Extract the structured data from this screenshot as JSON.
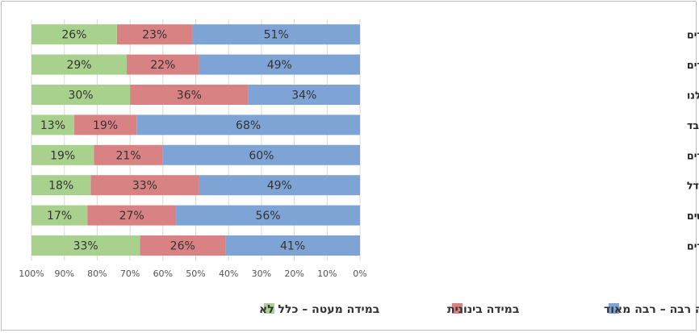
{
  "chart_data": {
    "type": "bar",
    "orientation": "horizontal-stacked-100",
    "x_reversed": true,
    "xlim": [
      0,
      100
    ],
    "x_ticks": [
      "0%",
      "10%",
      "20%",
      "30%",
      "40%",
      "50%",
      "60%",
      "70%",
      "80%",
      "90%",
      "100%"
    ],
    "categories": [
      "התוודענו יותר להנאה של קריאת ספרים עם הילדים",
      "אנו יותר מודעים לחשיבות של קריאת ספרים עם הילדים",
      "ספרים הפכו למשהו יותר מרכזי בבית שלנו",
      "הילדים מדפדפים בספרים ו״קוראים״ אותם לבד",
      "הילדים מבקשים יותר שנקריא להם סיפורים",
      "אוצר המילים של הילדים גדל",
      "הכרנו ספרים וסופרים חדשים",
      "אנחנו קוראים יותר ספרים עם הילדים"
    ],
    "series": [
      {
        "name": "במידה רבה – רבה מאוד",
        "color": "#7ea4d6",
        "values": [
          51,
          49,
          34,
          68,
          60,
          49,
          56,
          41
        ],
        "labels": [
          "51%",
          "49%",
          "34%",
          "68%",
          "60%",
          "49%",
          "56%",
          "41%"
        ]
      },
      {
        "name": "במידה בינונית",
        "color": "#d98283",
        "values": [
          23,
          22,
          36,
          19,
          21,
          33,
          27,
          26
        ],
        "labels": [
          "23%",
          "22%",
          "36%",
          "19%",
          "21%",
          "33%",
          "27%",
          "26%"
        ]
      },
      {
        "name": "במידה מעטה – כלל לא",
        "color": "#a9d18e",
        "values": [
          26,
          29,
          30,
          13,
          19,
          18,
          17,
          33
        ],
        "labels": [
          "26%",
          "29%",
          "30%",
          "13%",
          "19%",
          "18%",
          "17%",
          "33%"
        ]
      }
    ],
    "legend_position": "bottom",
    "grid": true
  }
}
